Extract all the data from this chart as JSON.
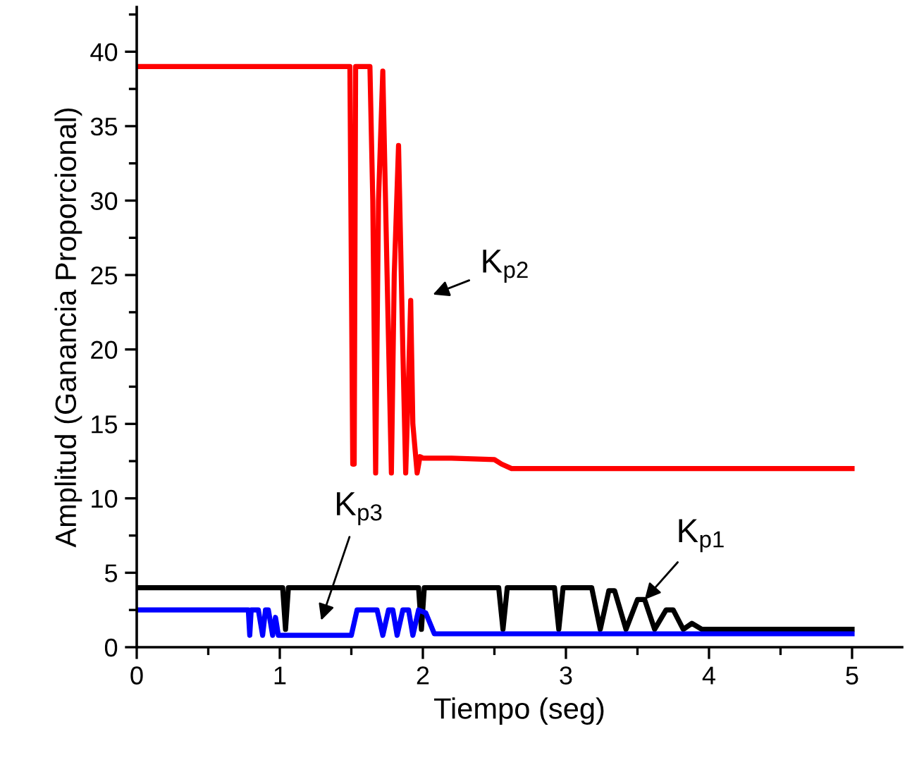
{
  "chart_data": {
    "type": "line",
    "xlabel": "Tiempo (seg)",
    "ylabel": "Amplitud (Ganancia Proporcional)",
    "xlim": [
      0,
      5.35
    ],
    "ylim": [
      0,
      43
    ],
    "xticks": [
      0,
      1,
      2,
      3,
      4,
      5
    ],
    "yticks": [
      0,
      5,
      10,
      15,
      20,
      25,
      30,
      35,
      40
    ],
    "grid": false,
    "legend": false,
    "line_style": "solid",
    "marker": "none",
    "series": [
      {
        "color": "#ff0000",
        "x": [
          0,
          1.49,
          1.51,
          1.52,
          1.53,
          1.55,
          1.63,
          1.65,
          1.67,
          1.69,
          1.72,
          1.75,
          1.78,
          1.8,
          1.83,
          1.86,
          1.88,
          1.9,
          1.915,
          1.93,
          1.96,
          1.98,
          2.0,
          2.2,
          2.5,
          2.55,
          2.62,
          3,
          3.5,
          4,
          4.5,
          5
        ],
        "values": [
          39,
          39,
          12.3,
          12.3,
          39,
          39,
          39,
          30,
          11.7,
          30,
          38.7,
          25,
          11.7,
          25,
          33.7,
          20,
          11.7,
          18,
          23.3,
          15,
          11.7,
          12.8,
          12.7,
          12.7,
          12.6,
          12.3,
          12.0,
          12.0,
          12.0,
          12.0,
          12.0,
          12.0
        ]
      },
      {
        "color": "#000000",
        "x": [
          0,
          1.02,
          1.04,
          1.06,
          1.97,
          1.99,
          2.01,
          2.53,
          2.56,
          2.59,
          2.92,
          2.95,
          2.98,
          3.18,
          3.24,
          3.3,
          3.34,
          3.42,
          3.5,
          3.55,
          3.62,
          3.7,
          3.75,
          3.82,
          3.88,
          3.95,
          4,
          4.5,
          5
        ],
        "values": [
          4,
          4,
          1.2,
          4,
          4,
          1.2,
          4,
          4,
          1.2,
          4,
          4,
          1.2,
          4,
          4,
          1.2,
          3.8,
          3.8,
          1.2,
          3.2,
          3.2,
          1.2,
          2.5,
          2.5,
          1.2,
          1.6,
          1.2,
          1.2,
          1.2,
          1.2
        ]
      },
      {
        "color": "#0000ff",
        "x": [
          0,
          0.75,
          0.78,
          0.79,
          0.8,
          0.85,
          0.88,
          0.9,
          0.92,
          0.95,
          0.97,
          0.99,
          1.02,
          1.05,
          1.5,
          1.54,
          1.58,
          1.68,
          1.72,
          1.76,
          1.79,
          1.82,
          1.86,
          1.9,
          1.93,
          1.97,
          2.02,
          2.08,
          2.15,
          3,
          4,
          5
        ],
        "values": [
          2.5,
          2.5,
          2.5,
          0.8,
          2.5,
          2.5,
          0.8,
          2.5,
          2.5,
          0.8,
          2.0,
          0.8,
          0.8,
          0.8,
          0.8,
          2.5,
          2.5,
          2.5,
          0.8,
          2.5,
          2.5,
          0.8,
          2.5,
          2.5,
          0.8,
          2.5,
          2.3,
          0.9,
          0.9,
          0.9,
          0.9,
          0.9
        ]
      }
    ],
    "annotations": [
      "K$_{p2}$",
      "K$_{p3}$",
      {
        "text": "K$_{p1}$",
        "x": 3.55,
        "y": 3.2
      }
    ]
  }
}
